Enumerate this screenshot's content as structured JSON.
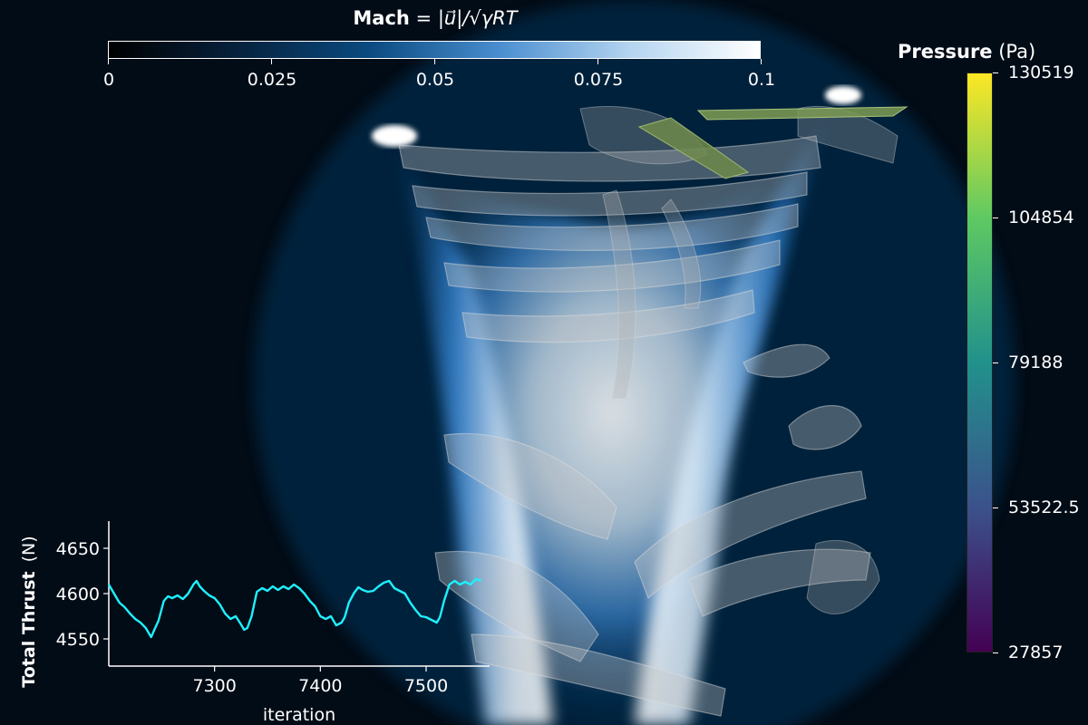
{
  "colors": {
    "background": "#020c16",
    "thrust_line": "#1ef0ff",
    "mach_map": [
      "#000000",
      "#06223e",
      "#0a4a80",
      "#4a8ed0",
      "#b4d4f0",
      "#ffffff"
    ],
    "pressure_map": [
      "#440154",
      "#3b528b",
      "#21918c",
      "#5ec962",
      "#fde725"
    ]
  },
  "mach_colorbar": {
    "title_bold": "Mach",
    "title_formula": "= |u⃗|/√γRT",
    "range": [
      0,
      0.1
    ],
    "ticks": [
      "0",
      "0.025",
      "0.05",
      "0.075",
      "0.1"
    ],
    "orientation": "horizontal",
    "position": "top"
  },
  "pressure_colorbar": {
    "title_bold": "Pressure",
    "title_unit": "(Pa)",
    "range": [
      27857,
      130519
    ],
    "ticks": [
      "130519",
      "104854",
      "79188",
      "53522.5",
      "27857"
    ],
    "orientation": "vertical",
    "position": "right"
  },
  "chart_data": {
    "type": "line",
    "ylabel_bold": "Total Thrust",
    "ylabel_unit": "(N)",
    "xlabel": "iteration",
    "xlim": [
      7200,
      7560
    ],
    "ylim": [
      4520,
      4680
    ],
    "xticks": [
      7300,
      7400,
      7500
    ],
    "yticks": [
      4550,
      4600,
      4650
    ],
    "grid": false,
    "series": [
      {
        "color": "#1ef0ff",
        "x": [
          7200,
          7205,
          7210,
          7215,
          7220,
          7225,
          7230,
          7235,
          7240,
          7243,
          7247,
          7252,
          7256,
          7260,
          7265,
          7270,
          7275,
          7280,
          7283,
          7286,
          7290,
          7295,
          7300,
          7305,
          7310,
          7315,
          7320,
          7325,
          7328,
          7331,
          7335,
          7340,
          7345,
          7350,
          7355,
          7360,
          7365,
          7370,
          7375,
          7380,
          7385,
          7390,
          7395,
          7400,
          7405,
          7410,
          7415,
          7420,
          7423,
          7427,
          7432,
          7436,
          7440,
          7445,
          7450,
          7455,
          7460,
          7465,
          7470,
          7475,
          7480,
          7485,
          7490,
          7495,
          7500,
          7505,
          7510,
          7513,
          7517,
          7522,
          7527,
          7532,
          7537,
          7542,
          7547,
          7552
        ],
        "y": [
          4610,
          4600,
          4590,
          4585,
          4578,
          4572,
          4568,
          4562,
          4552,
          4560,
          4570,
          4592,
          4597,
          4595,
          4598,
          4594,
          4600,
          4610,
          4614,
          4608,
          4603,
          4598,
          4595,
          4588,
          4578,
          4572,
          4575,
          4566,
          4560,
          4562,
          4575,
          4602,
          4606,
          4603,
          4608,
          4604,
          4608,
          4605,
          4610,
          4606,
          4600,
          4592,
          4586,
          4575,
          4572,
          4575,
          4565,
          4568,
          4574,
          4590,
          4601,
          4607,
          4604,
          4602,
          4603,
          4608,
          4612,
          4614,
          4606,
          4603,
          4600,
          4590,
          4582,
          4575,
          4574,
          4571,
          4568,
          4574,
          4592,
          4610,
          4614,
          4610,
          4613,
          4610,
          4616,
          4614
        ]
      }
    ]
  }
}
